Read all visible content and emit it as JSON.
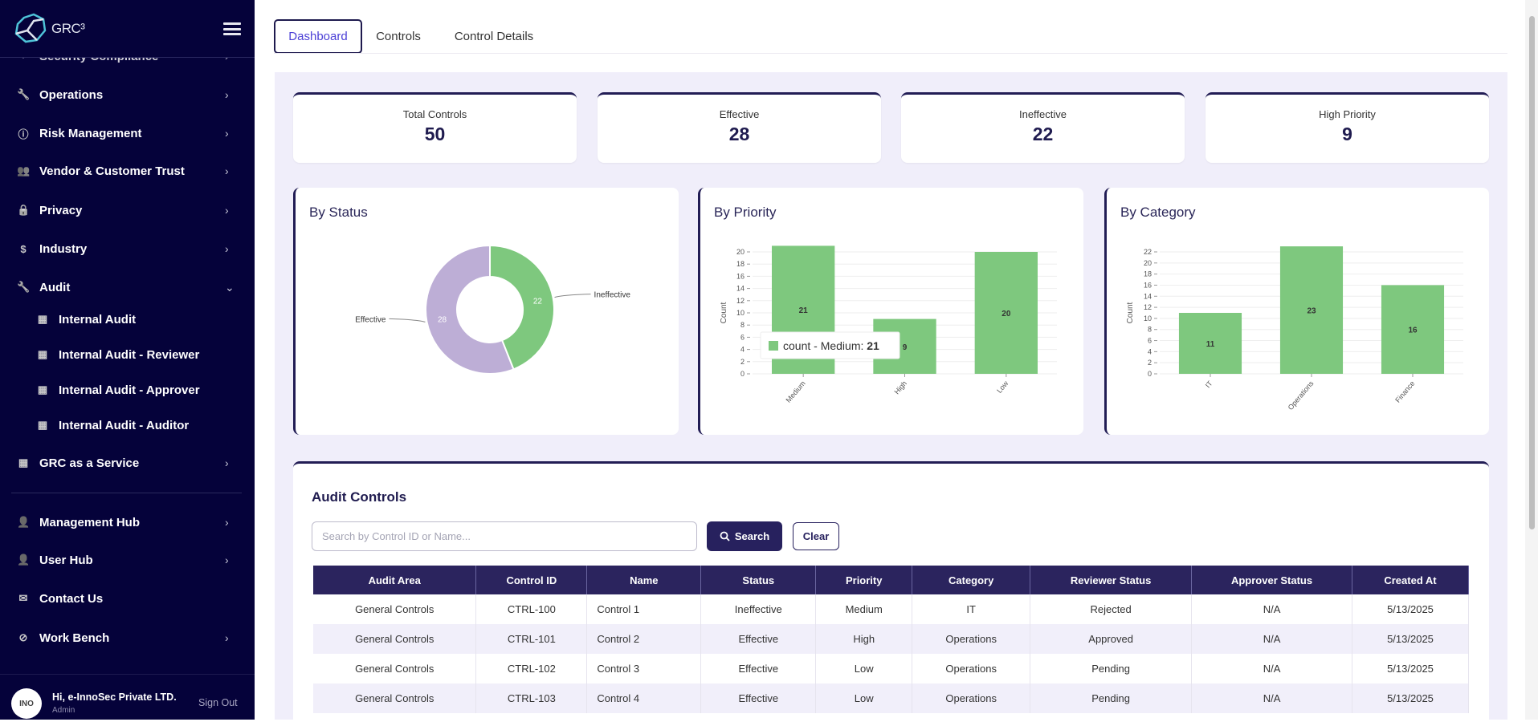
{
  "app": {
    "logo_text": "GRC³"
  },
  "sidebar": {
    "hidden_item": "Security Compliance",
    "items": [
      {
        "label": "Operations",
        "icon": "wrench-icon"
      },
      {
        "label": "Risk Management",
        "icon": "alert-circle-icon"
      },
      {
        "label": "Vendor & Customer Trust",
        "icon": "users-icon"
      },
      {
        "label": "Privacy",
        "icon": "lock-icon"
      },
      {
        "label": "Industry",
        "icon": "dollar-icon"
      },
      {
        "label": "Audit",
        "icon": "wrench-icon"
      },
      {
        "label": "Internal Audit",
        "icon": "grid-icon"
      },
      {
        "label": "Internal Audit - Reviewer",
        "icon": "grid-icon"
      },
      {
        "label": "Internal Audit - Approver",
        "icon": "grid-icon"
      },
      {
        "label": "Internal Audit - Auditor",
        "icon": "grid-icon"
      },
      {
        "label": "GRC as a Service",
        "icon": "grid-icon"
      },
      {
        "label": "Management Hub",
        "icon": "user-check-icon"
      },
      {
        "label": "User Hub",
        "icon": "user-icon"
      },
      {
        "label": "Contact Us",
        "icon": "mail-icon"
      },
      {
        "label": "Work Bench",
        "icon": "compass-icon"
      }
    ],
    "user": {
      "greeting": "Hi, e-InnoSec Private LTD.",
      "role": "Admin",
      "avatar_text": "INO",
      "sign_out": "Sign Out"
    }
  },
  "tabs": [
    {
      "label": "Dashboard",
      "active": true
    },
    {
      "label": "Controls",
      "active": false
    },
    {
      "label": "Control Details",
      "active": false
    }
  ],
  "stats": [
    {
      "label": "Total Controls",
      "value": "50"
    },
    {
      "label": "Effective",
      "value": "28"
    },
    {
      "label": "Ineffective",
      "value": "22"
    },
    {
      "label": "High Priority",
      "value": "9"
    }
  ],
  "chart_data": [
    {
      "type": "pie",
      "title": "By Status",
      "donut": true,
      "categories": [
        "Ineffective",
        "Effective"
      ],
      "values": [
        22,
        28
      ],
      "colors": [
        "#7ec87e",
        "#bdaed6"
      ]
    },
    {
      "type": "bar",
      "title": "By Priority",
      "ylabel": "Count",
      "categories": [
        "Medium",
        "High",
        "Low"
      ],
      "values": [
        21,
        9,
        20
      ],
      "ylim": [
        0,
        20
      ],
      "yticks": [
        0,
        2,
        4,
        6,
        8,
        10,
        12,
        14,
        16,
        18,
        20
      ],
      "grid": true,
      "color": "#7ec87e",
      "tooltip": {
        "label": "count - Medium:",
        "value": "21"
      }
    },
    {
      "type": "bar",
      "title": "By Category",
      "ylabel": "Count",
      "categories": [
        "IT",
        "Operations",
        "Finance"
      ],
      "values": [
        11,
        23,
        16
      ],
      "ylim": [
        0,
        22
      ],
      "yticks": [
        0,
        2,
        4,
        6,
        8,
        10,
        12,
        14,
        16,
        18,
        20,
        22
      ],
      "grid": true,
      "color": "#7ec87e"
    }
  ],
  "audit_controls": {
    "title": "Audit Controls",
    "search_placeholder": "Search by Control ID or Name...",
    "search_label": "Search",
    "clear_label": "Clear",
    "columns": [
      "Audit Area",
      "Control ID",
      "Name",
      "Status",
      "Priority",
      "Category",
      "Reviewer Status",
      "Approver Status",
      "Created At"
    ],
    "rows": [
      [
        "General Controls",
        "CTRL-100",
        "Control 1",
        "Ineffective",
        "Medium",
        "IT",
        "Rejected",
        "N/A",
        "5/13/2025"
      ],
      [
        "General Controls",
        "CTRL-101",
        "Control 2",
        "Effective",
        "High",
        "Operations",
        "Approved",
        "N/A",
        "5/13/2025"
      ],
      [
        "General Controls",
        "CTRL-102",
        "Control 3",
        "Effective",
        "Low",
        "Operations",
        "Pending",
        "N/A",
        "5/13/2025"
      ],
      [
        "General Controls",
        "CTRL-103",
        "Control 4",
        "Effective",
        "Low",
        "Operations",
        "Pending",
        "N/A",
        "5/13/2025"
      ]
    ]
  }
}
